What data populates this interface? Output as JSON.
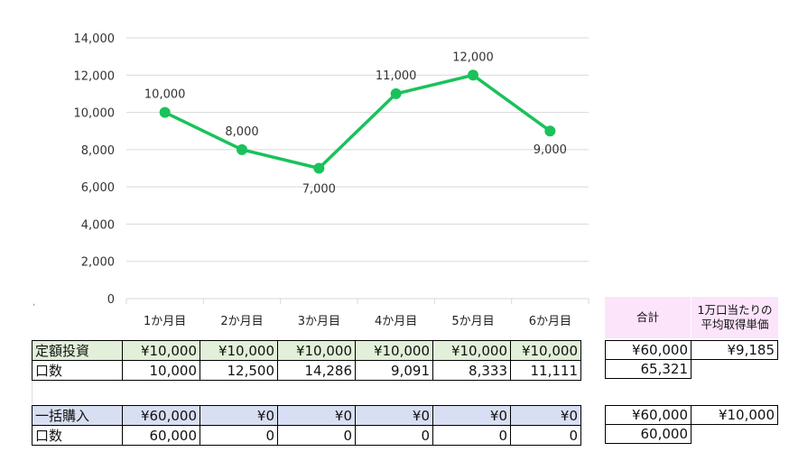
{
  "chart_data": {
    "type": "line",
    "categories": [
      "1か月目",
      "2か月目",
      "3か月目",
      "4か月目",
      "5か月目",
      "6か月目"
    ],
    "series": [
      {
        "values": [
          10000,
          8000,
          7000,
          11000,
          12000,
          9000
        ],
        "color": "#19c25a"
      }
    ],
    "data_labels": [
      "10,000",
      "8,000",
      "7,000",
      "11,000",
      "12,000",
      "9,000"
    ],
    "ylim": [
      0,
      14000
    ],
    "yticks": [
      "0",
      "2,000",
      "4,000",
      "6,000",
      "8,000",
      "10,000",
      "12,000",
      "14,000"
    ],
    "grid": true,
    "legend": "none"
  },
  "summary_header": {
    "total": "合計",
    "avg_line1": "1万口当たりの",
    "avg_line2": "平均取得単価"
  },
  "teigaku": {
    "label": "定額投資",
    "amounts": [
      "¥10,000",
      "¥10,000",
      "¥10,000",
      "¥10,000",
      "¥10,000",
      "¥10,000"
    ],
    "units_label": "口数",
    "units": [
      "10,000",
      "12,500",
      "14,286",
      "9,091",
      "8,333",
      "11,111"
    ],
    "total_amount": "¥60,000",
    "avg_price": "¥9,185",
    "total_units": "65,321",
    "color": "#e2efd9"
  },
  "ikkatsu": {
    "label": "一括購入",
    "amounts": [
      "¥60,000",
      "¥0",
      "¥0",
      "¥0",
      "¥0",
      "¥0"
    ],
    "units_label": "口数",
    "units": [
      "60,000",
      "0",
      "0",
      "0",
      "0",
      "0"
    ],
    "total_amount": "¥60,000",
    "avg_price": "¥10,000",
    "total_units": "60,000",
    "color": "#d9dff2"
  },
  "colors": {
    "header_pink": "#fce4fb",
    "grid": "#d9d9d9",
    "tick_text": "#333333"
  }
}
